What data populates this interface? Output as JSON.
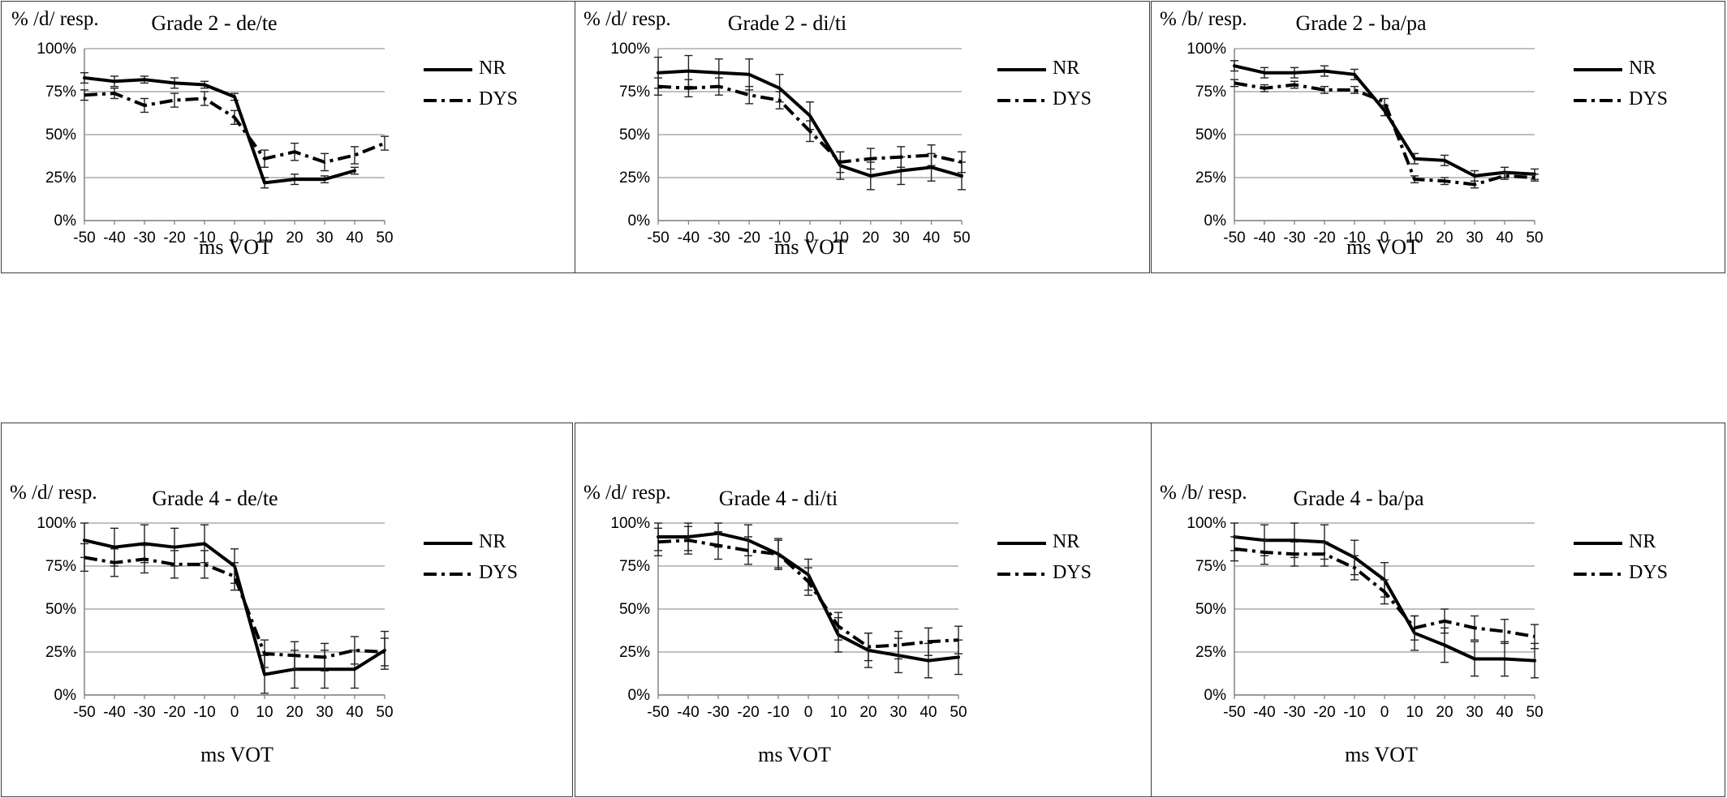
{
  "chart_data": [
    {
      "type": "line",
      "title": "Grade 2 - de/te",
      "ylabel": "% /d/ resp.",
      "xlabel": "ms VOT",
      "x": [
        -50,
        -40,
        -30,
        -20,
        -10,
        0,
        10,
        20,
        30,
        40,
        50
      ],
      "x_tick_labels": [
        "-50",
        "-40",
        "-30",
        "-20",
        "-10",
        "0",
        "10",
        "20",
        "30",
        "40",
        "50"
      ],
      "y_tick_labels": [
        "0%",
        "25%",
        "50%",
        "75%",
        "100%"
      ],
      "ylim": [
        0,
        100
      ],
      "legend_position": "right",
      "series": [
        {
          "name": "NR",
          "style": "solid",
          "values": [
            83,
            81,
            82,
            80,
            79,
            72,
            22,
            24,
            24,
            29,
            null
          ],
          "errors": [
            3,
            3,
            2,
            3,
            2,
            2,
            3,
            3,
            2,
            2,
            0
          ]
        },
        {
          "name": "DYS",
          "style": "dash-dot",
          "values": [
            73,
            74,
            67,
            70,
            71,
            60,
            36,
            40,
            34,
            38,
            45
          ],
          "errors": [
            3,
            3,
            4,
            4,
            4,
            4,
            5,
            5,
            5,
            5,
            4
          ]
        }
      ]
    },
    {
      "type": "line",
      "title": "Grade 2 - di/ti",
      "ylabel": "% /d/ resp.",
      "xlabel": "ms VOT",
      "x": [
        -50,
        -40,
        -30,
        -20,
        -10,
        0,
        10,
        20,
        30,
        40,
        50
      ],
      "x_tick_labels": [
        "-50",
        "-40",
        "-30",
        "-20",
        "-10",
        "0",
        "10",
        "20",
        "30",
        "40",
        "50"
      ],
      "y_tick_labels": [
        "0%",
        "25%",
        "50%",
        "75%",
        "100%"
      ],
      "ylim": [
        0,
        100
      ],
      "legend_position": "right",
      "series": [
        {
          "name": "NR",
          "style": "solid",
          "values": [
            86,
            87,
            86,
            85,
            77,
            61,
            32,
            26,
            29,
            31,
            26
          ],
          "errors": [
            9,
            9,
            8,
            9,
            8,
            8,
            8,
            8,
            8,
            8,
            8
          ]
        },
        {
          "name": "DYS",
          "style": "dash-dot",
          "values": [
            78,
            77,
            78,
            73,
            70,
            52,
            34,
            36,
            37,
            38,
            34
          ],
          "errors": [
            5,
            5,
            5,
            5,
            5,
            6,
            6,
            6,
            6,
            6,
            6
          ]
        }
      ]
    },
    {
      "type": "line",
      "title": "Grade 2 - ba/pa",
      "ylabel": "% /b/ resp.",
      "xlabel": "ms VOT",
      "x": [
        -50,
        -40,
        -30,
        -20,
        -10,
        0,
        10,
        20,
        30,
        40,
        50
      ],
      "x_tick_labels": [
        "-50",
        "-40",
        "-30",
        "-20",
        "-10",
        "0",
        "10",
        "20",
        "30",
        "40",
        "50"
      ],
      "y_tick_labels": [
        "0%",
        "25%",
        "50%",
        "75%",
        "100%"
      ],
      "ylim": [
        0,
        100
      ],
      "legend_position": "right",
      "series": [
        {
          "name": "NR",
          "style": "solid",
          "values": [
            90,
            86,
            86,
            87,
            85,
            64,
            36,
            35,
            26,
            28,
            27
          ],
          "errors": [
            3,
            3,
            3,
            3,
            3,
            3,
            3,
            3,
            3,
            3,
            3
          ]
        },
        {
          "name": "DYS",
          "style": "dash-dot",
          "values": [
            80,
            77,
            79,
            76,
            76,
            69,
            24,
            23,
            21,
            26,
            25
          ],
          "errors": [
            2,
            2,
            2,
            2,
            2,
            2,
            2,
            2,
            2,
            2,
            2
          ]
        }
      ]
    },
    {
      "type": "line",
      "title": "Grade 4 - de/te",
      "ylabel": "% /d/ resp.",
      "xlabel": "ms VOT",
      "x": [
        -50,
        -40,
        -30,
        -20,
        -10,
        0,
        10,
        20,
        30,
        40,
        50
      ],
      "x_tick_labels": [
        "-50",
        "-40",
        "-30",
        "-20",
        "-10",
        "0",
        "10",
        "20",
        "30",
        "40",
        "50"
      ],
      "y_tick_labels": [
        "0%",
        "25%",
        "50%",
        "75%",
        "100%"
      ],
      "ylim": [
        0,
        100
      ],
      "legend_position": "right",
      "series": [
        {
          "name": "NR",
          "style": "solid",
          "values": [
            90,
            86,
            88,
            86,
            88,
            75,
            12,
            15,
            15,
            15,
            26
          ],
          "errors": [
            10,
            11,
            11,
            11,
            11,
            10,
            11,
            11,
            11,
            11,
            11
          ]
        },
        {
          "name": "DYS",
          "style": "dash-dot",
          "values": [
            80,
            77,
            79,
            76,
            76,
            69,
            24,
            23,
            22,
            26,
            25
          ],
          "errors": [
            8,
            8,
            8,
            8,
            8,
            8,
            8,
            8,
            8,
            8,
            8
          ]
        }
      ]
    },
    {
      "type": "line",
      "title": "Grade 4 - di/ti",
      "ylabel": "% /d/ resp.",
      "xlabel": "ms VOT",
      "x": [
        -50,
        -40,
        -30,
        -20,
        -10,
        0,
        10,
        20,
        30,
        40,
        50
      ],
      "x_tick_labels": [
        "-50",
        "-40",
        "-30",
        "-20",
        "-10",
        "0",
        "10",
        "20",
        "30",
        "40",
        "50"
      ],
      "y_tick_labels": [
        "0%",
        "25%",
        "50%",
        "75%",
        "100%"
      ],
      "ylim": [
        0,
        100
      ],
      "legend_position": "right",
      "series": [
        {
          "name": "NR",
          "style": "solid",
          "values": [
            92,
            92,
            94,
            90,
            82,
            70,
            35,
            26,
            23,
            20,
            22
          ],
          "errors": [
            8,
            8,
            8,
            9,
            9,
            9,
            10,
            10,
            10,
            10,
            10
          ]
        },
        {
          "name": "DYS",
          "style": "dash-dot",
          "values": [
            89,
            90,
            87,
            84,
            82,
            66,
            40,
            28,
            29,
            31,
            32
          ],
          "errors": [
            8,
            8,
            8,
            8,
            8,
            8,
            8,
            8,
            8,
            8,
            8
          ]
        }
      ]
    },
    {
      "type": "line",
      "title": "Grade 4 - ba/pa",
      "ylabel": "% /b/ resp.",
      "xlabel": "ms VOT",
      "x": [
        -50,
        -40,
        -30,
        -20,
        -10,
        0,
        10,
        20,
        30,
        40,
        50
      ],
      "x_tick_labels": [
        "-50",
        "-40",
        "-30",
        "-20",
        "-10",
        "0",
        "10",
        "20",
        "30",
        "40",
        "50"
      ],
      "y_tick_labels": [
        "0%",
        "25%",
        "50%",
        "75%",
        "100%"
      ],
      "ylim": [
        0,
        100
      ],
      "legend_position": "right",
      "series": [
        {
          "name": "NR",
          "style": "solid",
          "values": [
            92,
            90,
            90,
            89,
            80,
            67,
            36,
            29,
            21,
            21,
            20
          ],
          "errors": [
            8,
            9,
            10,
            10,
            10,
            10,
            10,
            10,
            10,
            10,
            10
          ]
        },
        {
          "name": "DYS",
          "style": "dash-dot",
          "values": [
            85,
            83,
            82,
            82,
            74,
            60,
            39,
            43,
            39,
            37,
            34
          ],
          "errors": [
            7,
            7,
            7,
            7,
            7,
            7,
            7,
            7,
            7,
            7,
            7
          ]
        }
      ]
    }
  ]
}
